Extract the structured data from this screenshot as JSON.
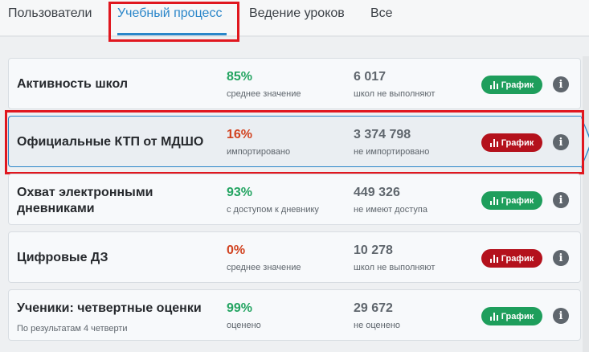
{
  "tabs": [
    {
      "label": "Пользователи"
    },
    {
      "label": "Учебный процесс"
    },
    {
      "label": "Ведение уроков"
    },
    {
      "label": "Все"
    }
  ],
  "active_tab": "Учебный процесс",
  "graph_label": "График",
  "info_glyph": "i",
  "colors": {
    "good": "#23a461",
    "bad": "#d1421f",
    "accent": "#2a86c9",
    "highlight": "#e0171f"
  },
  "rows": [
    {
      "title": "Активность школ",
      "subtitle": "",
      "metric_value": "85%",
      "metric_label": "среднее значение",
      "count_value": "6 017",
      "count_label": "школ не выполняют",
      "status": "good"
    },
    {
      "title": "Официальные КТП от МДШО",
      "subtitle": "",
      "metric_value": "16%",
      "metric_label": "импортировано",
      "count_value": "3 374 798",
      "count_label": "не импортировано",
      "status": "bad",
      "selected": true
    },
    {
      "title_line1": "Охват электронными",
      "title_line2": "дневниками",
      "subtitle": "",
      "metric_value": "93%",
      "metric_label": "с доступом к дневнику",
      "count_value": "449 326",
      "count_label": "не имеют доступа",
      "status": "good"
    },
    {
      "title": "Цифровые ДЗ",
      "subtitle": "",
      "metric_value": "0%",
      "metric_label": "среднее значение",
      "count_value": "10 278",
      "count_label": "школ не выполняют",
      "status": "bad"
    },
    {
      "title": "Ученики: четвертные оценки",
      "subtitle": "По результатам 4 четверти",
      "metric_value": "99%",
      "metric_label": "оценено",
      "count_value": "29 672",
      "count_label": "не оценено",
      "status": "good"
    }
  ]
}
